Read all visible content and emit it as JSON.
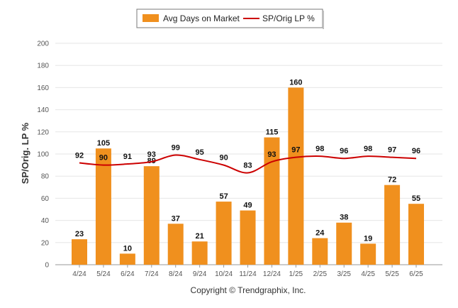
{
  "chart_data": {
    "type": "bar",
    "categories": [
      "4/24",
      "5/24",
      "6/24",
      "7/24",
      "8/24",
      "9/24",
      "10/24",
      "11/24",
      "12/24",
      "1/25",
      "2/25",
      "3/25",
      "4/25",
      "5/25",
      "6/25"
    ],
    "series": [
      {
        "name": "Avg Days on Market",
        "type": "bar",
        "color": "#f0901e",
        "values": [
          23,
          105,
          10,
          89,
          37,
          21,
          57,
          49,
          115,
          160,
          24,
          38,
          19,
          72,
          55
        ]
      },
      {
        "name": "SP/Orig LP %",
        "type": "line",
        "color": "#cc0000",
        "values": [
          92,
          90,
          91,
          93,
          99,
          95,
          90,
          83,
          93,
          97,
          98,
          96,
          98,
          97,
          96
        ]
      }
    ],
    "ylabel": "SP/Orig. LP %",
    "ylim": [
      0,
      200
    ],
    "yticks": [
      0,
      20,
      40,
      60,
      80,
      100,
      120,
      140,
      160,
      180,
      200
    ],
    "grid": true,
    "legend_position": "top-center"
  },
  "footer": {
    "copyright": "Copyright © Trendgraphix, Inc."
  }
}
